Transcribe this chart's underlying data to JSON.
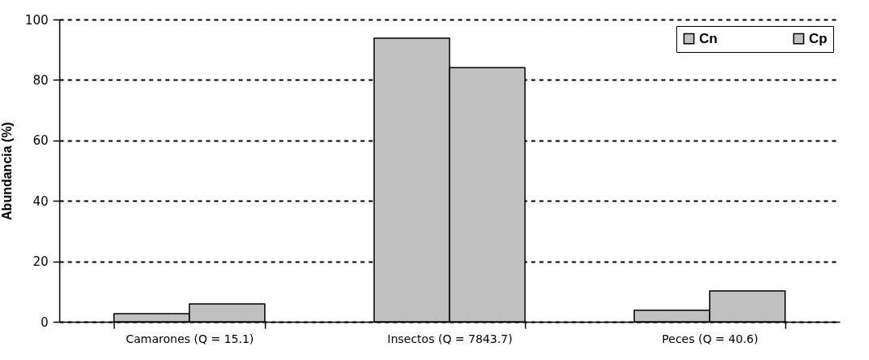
{
  "chart_data": {
    "type": "bar",
    "ylabel": "Abundancia (%)",
    "categories": [
      "Camarones (Q = 15.1)",
      "Insectos (Q = 7843.7)",
      "Peces (Q = 40.6)"
    ],
    "series": [
      {
        "name": "Cn",
        "color": "#c0c0c0",
        "values": [
          2.7,
          93.8,
          3.8
        ]
      },
      {
        "name": "Cp",
        "color": "#c0c0c0",
        "values": [
          5.9,
          84.1,
          10.2
        ]
      }
    ],
    "ylim": [
      0,
      100
    ],
    "yticks": [
      0,
      20,
      40,
      60,
      80,
      100
    ],
    "grid": "y",
    "legend": "top right"
  }
}
